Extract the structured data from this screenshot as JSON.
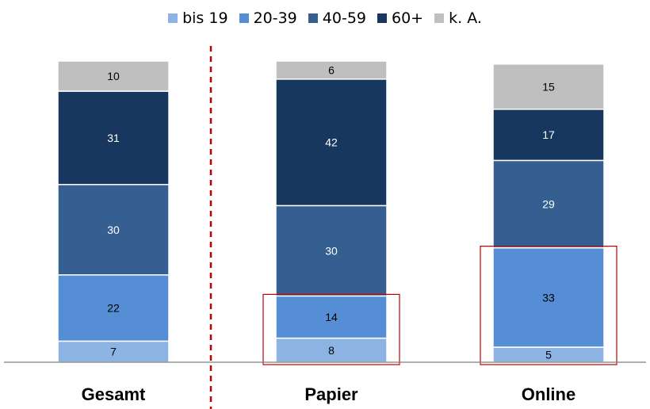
{
  "chart_data": {
    "type": "bar",
    "stacked": true,
    "categories": [
      "Gesamt",
      "Papier",
      "Online"
    ],
    "series": [
      {
        "name": "bis 19",
        "color": "#8db3e2",
        "values": [
          7,
          8,
          5
        ]
      },
      {
        "name": "20-39",
        "color": "#558ed5",
        "values": [
          22,
          14,
          33
        ]
      },
      {
        "name": "40-59",
        "color": "#355e91",
        "values": [
          30,
          30,
          29
        ]
      },
      {
        "name": "60+",
        "color": "#17375e",
        "values": [
          31,
          42,
          17
        ]
      },
      {
        "name": "k. A.",
        "color": "#bfbfbf",
        "values": [
          10,
          6,
          15
        ]
      }
    ],
    "label_colors": [
      "#000000",
      "#000000",
      "#ffffff",
      "#ffffff",
      "#000000"
    ],
    "legend_position": "top",
    "grid": false,
    "annotations": [
      {
        "type": "highlight-box",
        "category": "Papier",
        "series": [
          "bis 19",
          "20-39"
        ],
        "color": "#c00000"
      },
      {
        "type": "highlight-box",
        "category": "Online",
        "series": [
          "bis 19",
          "20-39"
        ],
        "color": "#c00000"
      },
      {
        "type": "dashed-separator",
        "after_category": "Gesamt",
        "color": "#c00000"
      }
    ]
  }
}
